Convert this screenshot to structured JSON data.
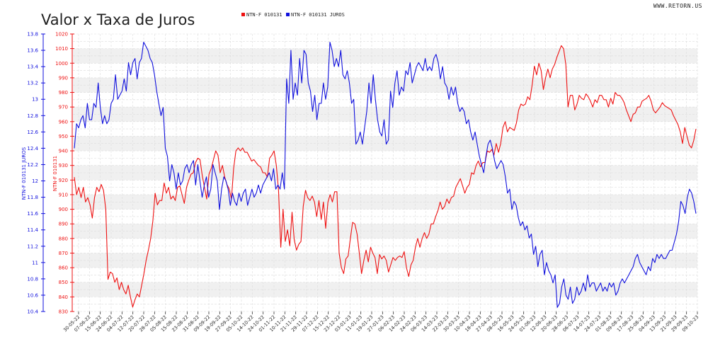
{
  "chart_data": {
    "type": "line",
    "title": "Valor x Taxa de Juros",
    "site": "WWW.RETORN.US",
    "legend_position": "top",
    "grid": true,
    "xlabel": "",
    "colors": {
      "price": "#ee1111",
      "yield": "#1111dd"
    },
    "y_left_outer": {
      "label": "NTN-F 010131 JUROS",
      "range": [
        10.4,
        13.8
      ],
      "ticks": [
        "13.8",
        "13.6",
        "13.4",
        "13.2",
        "13",
        "12.8",
        "12.6",
        "12.4",
        "12.2",
        "12",
        "11.8",
        "11.6",
        "11.4",
        "11.2",
        "11",
        "10.8",
        "10.6",
        "10.4"
      ]
    },
    "y_left_inner": {
      "label": "NTN-F 010131",
      "range": [
        830,
        1020
      ],
      "ticks": [
        "1020",
        "1010",
        "1000",
        "990",
        "980",
        "970",
        "960",
        "950",
        "940",
        "930",
        "920",
        "910",
        "900",
        "890",
        "880",
        "870",
        "860",
        "850",
        "840",
        "830"
      ]
    },
    "x_tick_labels": [
      "30-05-22",
      "07-06-22",
      "15-06-22",
      "24-06-22",
      "04-07-22",
      "12-07-22",
      "20-07-22",
      "28-07-22",
      "05-08-22",
      "15-08-22",
      "23-08-22",
      "31-08-22",
      "09-09-22",
      "19-09-22",
      "27-09-22",
      "05-10-22",
      "14-10-22",
      "24-10-22",
      "01-11-22",
      "10-11-22",
      "21-11-22",
      "29-11-22",
      "07-12-22",
      "15-12-22",
      "23-12-22",
      "03-01-23",
      "11-01-23",
      "19-01-23",
      "27-01-23",
      "06-02-23",
      "14-02-23",
      "24-02-23",
      "06-03-23",
      "14-03-23",
      "22-03-23",
      "30-03-23",
      "10-04-23",
      "18-04-23",
      "27-04-23",
      "08-05-23",
      "16-05-23",
      "24-05-23",
      "01-06-23",
      "12-06-23",
      "20-06-23",
      "28-06-23",
      "06-07-23",
      "14-07-23",
      "24-07-23",
      "01-08-23",
      "09-08-23",
      "17-08-23",
      "25-08-23",
      "04-09-23",
      "13-09-23",
      "21-09-23",
      "29-09-23",
      "09-10-23"
    ],
    "series": [
      {
        "name": "NTN-F 010131",
        "axis": "inner",
        "values": [
          922,
          910,
          915,
          908,
          915,
          905,
          908,
          903,
          894,
          908,
          915,
          912,
          917,
          913,
          900,
          852,
          857,
          856,
          850,
          853,
          845,
          850,
          845,
          842,
          848,
          840,
          833,
          838,
          842,
          840,
          848,
          856,
          865,
          872,
          880,
          892,
          911,
          903,
          906,
          906,
          918,
          911,
          915,
          907,
          909,
          906,
          915,
          916,
          910,
          904,
          915,
          920,
          924,
          925,
          932,
          935,
          934,
          923,
          915,
          907,
          924,
          928,
          934,
          940,
          937,
          925,
          930,
          922,
          917,
          914,
          907,
          928,
          940,
          942,
          940,
          942,
          939,
          939,
          936,
          933,
          934,
          932,
          930,
          929,
          925,
          925,
          922,
          935,
          937,
          940,
          930,
          913,
          874,
          900,
          878,
          886,
          875,
          898,
          879,
          872,
          876,
          878,
          902,
          913,
          908,
          906,
          909,
          905,
          895,
          906,
          893,
          905,
          887,
          905,
          910,
          905,
          912,
          912,
          870,
          860,
          856,
          866,
          868,
          880,
          891,
          890,
          883,
          870,
          856,
          865,
          872,
          864,
          874,
          870,
          867,
          856,
          869,
          866,
          868,
          865,
          857,
          862,
          867,
          865,
          867,
          868,
          867,
          871,
          860,
          854,
          862,
          865,
          874,
          880,
          874,
          880,
          884,
          880,
          883,
          890,
          890,
          895,
          899,
          905,
          900,
          902,
          907,
          904,
          908,
          909,
          915,
          918,
          921,
          916,
          911,
          915,
          917,
          925,
          924,
          930,
          933,
          929,
          932,
          932,
          940,
          939,
          941,
          937,
          945,
          939,
          945,
          956,
          960,
          953,
          956,
          955,
          954,
          959,
          968,
          972,
          971,
          972,
          977,
          975,
          985,
          998,
          992,
          1000,
          995,
          982,
          990,
          996,
          990,
          996,
          999,
          1004,
          1008,
          1012,
          1010,
          999,
          970,
          978,
          978,
          968,
          972,
          978,
          976,
          975,
          979,
          977,
          974,
          970,
          975,
          973,
          978,
          978,
          975,
          975,
          970,
          976,
          972,
          980,
          978,
          978,
          976,
          973,
          968,
          964,
          960,
          965,
          966,
          970,
          970,
          974,
          975,
          976,
          978,
          974,
          968,
          966,
          968,
          970,
          973,
          971,
          970,
          969,
          968,
          964,
          961,
          958,
          953,
          945,
          956,
          950,
          944,
          942,
          947,
          955
        ]
      },
      {
        "name": "NTN-F 010131 JUROS",
        "axis": "outer",
        "values": [
          12.4,
          12.7,
          12.65,
          12.75,
          12.8,
          12.65,
          12.95,
          12.75,
          12.75,
          12.95,
          12.9,
          13.2,
          12.9,
          12.7,
          12.8,
          12.7,
          12.75,
          12.95,
          13.0,
          13.3,
          13.0,
          13.05,
          13.1,
          13.25,
          13.1,
          13.45,
          13.3,
          13.45,
          13.5,
          13.25,
          13.45,
          13.5,
          13.7,
          13.65,
          13.6,
          13.5,
          13.45,
          13.3,
          13.1,
          12.95,
          12.8,
          12.9,
          12.4,
          12.3,
          12.0,
          12.2,
          12.1,
          11.9,
          12.1,
          11.95,
          12.0,
          12.15,
          12.2,
          12.1,
          12.2,
          12.25,
          11.95,
          12.2,
          12.0,
          11.8,
          11.95,
          12.05,
          11.8,
          11.9,
          12.2,
          12.1,
          12.0,
          11.65,
          11.9,
          12.05,
          12.0,
          11.9,
          11.7,
          11.85,
          11.75,
          11.7,
          11.85,
          11.75,
          11.85,
          11.9,
          11.7,
          11.8,
          11.9,
          11.8,
          11.85,
          11.95,
          11.85,
          11.95,
          12.0,
          12.05,
          12.1,
          12.0,
          12.15,
          11.9,
          11.95,
          11.9,
          12.1,
          11.9,
          13.25,
          12.95,
          13.6,
          13.0,
          13.2,
          13.05,
          13.5,
          13.2,
          13.6,
          13.55,
          13.2,
          13.1,
          12.85,
          13.05,
          12.75,
          12.95,
          12.95,
          13.2,
          13.0,
          13.15,
          13.7,
          13.6,
          13.4,
          13.5,
          13.4,
          13.6,
          13.3,
          13.25,
          13.35,
          13.2,
          12.95,
          13.0,
          12.45,
          12.5,
          12.6,
          12.45,
          12.65,
          12.85,
          13.2,
          12.95,
          13.3,
          13.0,
          12.75,
          12.6,
          12.55,
          12.75,
          12.45,
          12.5,
          13.1,
          12.9,
          13.2,
          13.35,
          13.05,
          13.15,
          13.1,
          13.35,
          13.3,
          13.45,
          13.2,
          13.3,
          13.4,
          13.45,
          13.4,
          13.35,
          13.5,
          13.35,
          13.4,
          13.35,
          13.5,
          13.55,
          13.45,
          13.25,
          13.4,
          13.2,
          13.15,
          13.0,
          13.15,
          13.05,
          13.15,
          12.95,
          12.85,
          12.9,
          12.85,
          12.7,
          12.75,
          12.6,
          12.5,
          12.6,
          12.45,
          12.3,
          12.2,
          12.1,
          12.3,
          12.45,
          12.5,
          12.4,
          12.25,
          12.15,
          12.2,
          12.25,
          12.2,
          12.05,
          11.85,
          11.9,
          11.65,
          11.75,
          11.7,
          11.55,
          11.45,
          11.5,
          11.4,
          11.45,
          11.3,
          11.35,
          11.1,
          11.2,
          10.95,
          11.1,
          11.15,
          10.85,
          11.0,
          10.9,
          10.85,
          10.75,
          10.85,
          10.45,
          10.5,
          10.7,
          10.8,
          10.6,
          10.55,
          10.7,
          10.5,
          10.55,
          10.7,
          10.6,
          10.65,
          10.75,
          10.65,
          10.85,
          10.7,
          10.75,
          10.75,
          10.65,
          10.7,
          10.75,
          10.65,
          10.7,
          10.65,
          10.75,
          10.7,
          10.75,
          10.6,
          10.65,
          10.75,
          10.8,
          10.75,
          10.8,
          10.85,
          10.9,
          10.95,
          11.05,
          11.1,
          11.0,
          10.95,
          10.9,
          10.85,
          10.95,
          10.9,
          11.05,
          11.0,
          11.1,
          11.05,
          11.1,
          11.05,
          11.05,
          11.1,
          11.15,
          11.15,
          11.25,
          11.35,
          11.5,
          11.75,
          11.7,
          11.6,
          11.8,
          11.9,
          11.85,
          11.75,
          11.6
        ]
      }
    ]
  }
}
